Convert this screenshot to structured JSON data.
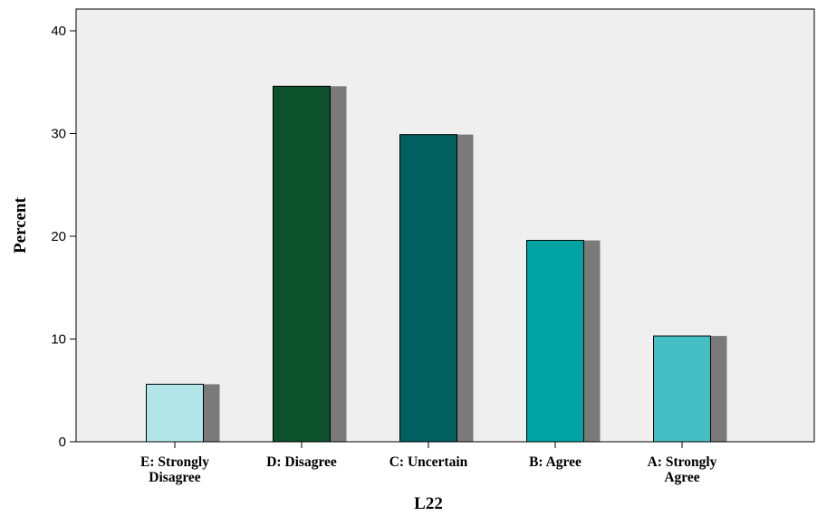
{
  "chart_data": {
    "type": "bar",
    "title": "",
    "xlabel": "L22",
    "ylabel": "Percent",
    "ylim": [
      0,
      40
    ],
    "yticks": [
      0,
      10,
      20,
      30,
      40
    ],
    "grid": false,
    "bar_shadow": true,
    "categories": [
      {
        "line1": "E: Strongly",
        "line2": "Disagree"
      },
      {
        "line1": "D: Disagree",
        "line2": ""
      },
      {
        "line1": "C: Uncertain",
        "line2": ""
      },
      {
        "line1": "B: Agree",
        "line2": ""
      },
      {
        "line1": "A: Strongly",
        "line2": "Agree"
      }
    ],
    "values": [
      5.6,
      34.6,
      29.9,
      19.6,
      10.3
    ],
    "bar_colors": [
      "#b3e6e8",
      "#0c512b",
      "#036060",
      "#00a3a3",
      "#45bfc4"
    ],
    "plot_background": "#efefef",
    "shadow_color": "#7a7a7a"
  }
}
